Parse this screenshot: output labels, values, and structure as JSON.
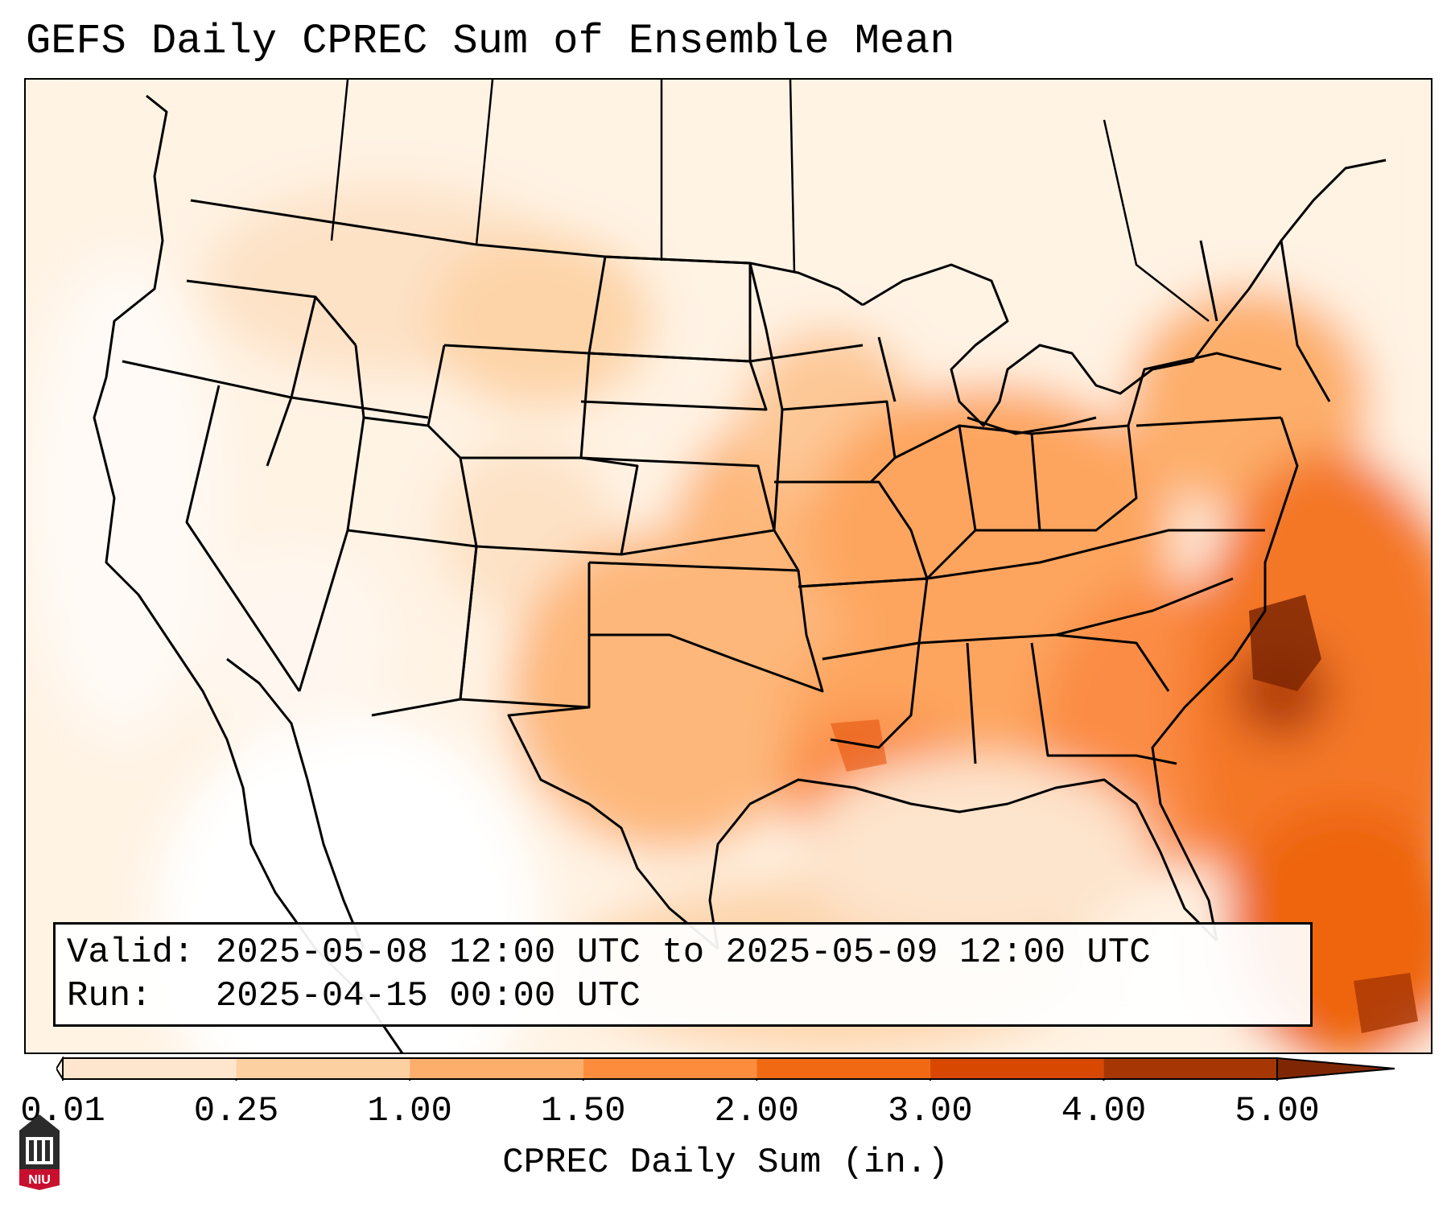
{
  "title": "GEFS Daily CPREC Sum of Ensemble Mean",
  "info": {
    "valid_label": "Valid:",
    "valid_value": "2025-05-08 12:00 UTC to 2025-05-09 12:00 UTC",
    "run_label": "Run:",
    "run_value": "2025-04-15 00:00 UTC"
  },
  "colorbar": {
    "label": "CPREC Daily Sum (in.)",
    "ticks": [
      "0.01",
      "0.25",
      "1.00",
      "1.50",
      "2.00",
      "3.00",
      "4.00",
      "5.00"
    ],
    "colors": [
      "#fff5eb",
      "#fee6ce",
      "#fdd0a2",
      "#fdae6b",
      "#fd8d3c",
      "#f16913",
      "#d94801",
      "#a63603",
      "#7f2704"
    ],
    "extend": "both"
  },
  "logo": {
    "text": "NIU",
    "color": "#c8102e"
  }
}
